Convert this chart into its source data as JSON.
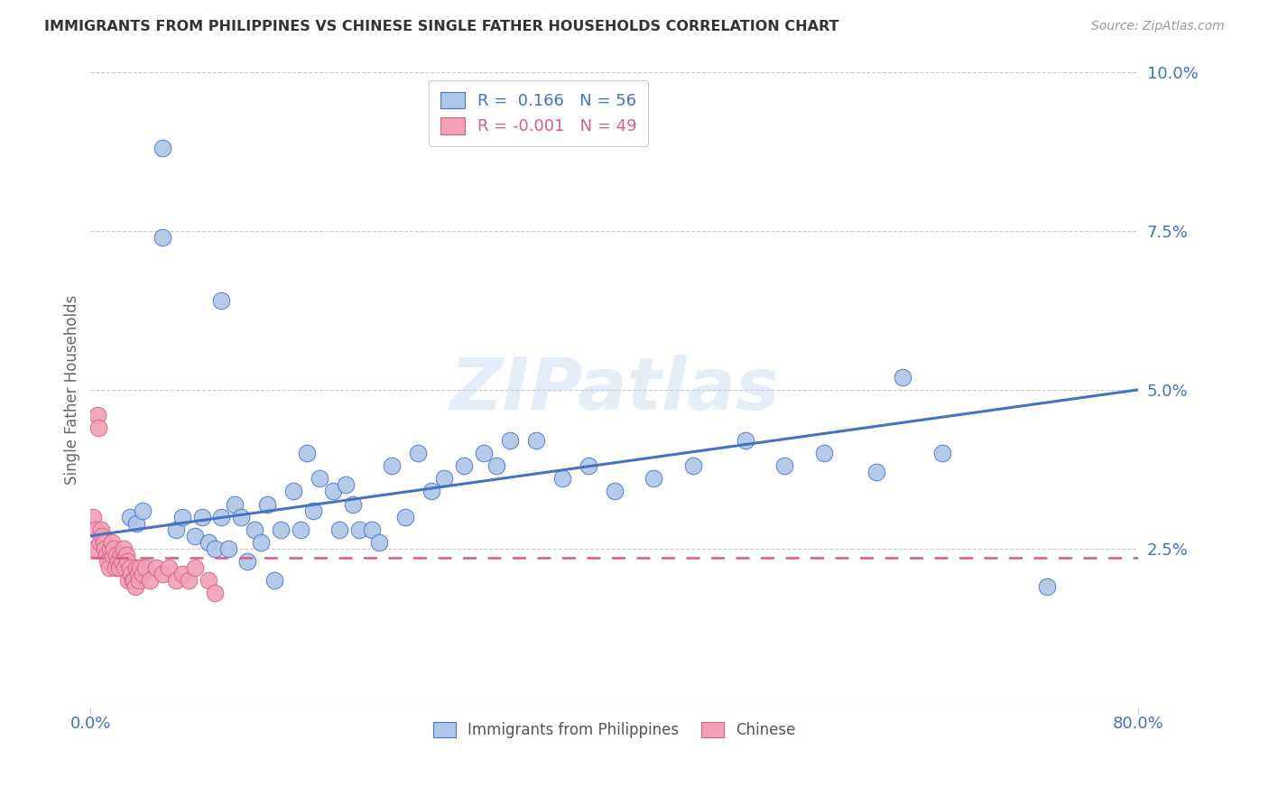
{
  "title": "IMMIGRANTS FROM PHILIPPINES VS CHINESE SINGLE FATHER HOUSEHOLDS CORRELATION CHART",
  "source": "Source: ZipAtlas.com",
  "ylabel": "Single Father Households",
  "watermark_text": "ZIPatlas",
  "series1_label": "Immigrants from Philippines",
  "series2_label": "Chinese",
  "series1_R": "0.166",
  "series1_N": "56",
  "series2_R": "-0.001",
  "series2_N": "49",
  "series1_color": "#aec6e8",
  "series2_color": "#f2a0b5",
  "trend1_color": "#4472c4",
  "trend2_color": "#d45f82",
  "xlim": [
    0.0,
    0.8
  ],
  "ylim": [
    0.0,
    0.1
  ],
  "yticks": [
    0.0,
    0.025,
    0.05,
    0.075,
    0.1
  ],
  "ytick_labels": [
    "",
    "2.5%",
    "5.0%",
    "7.5%",
    "10.0%"
  ],
  "xticks": [
    0.0,
    0.2,
    0.4,
    0.6,
    0.8
  ],
  "xtick_labels": [
    "0.0%",
    "",
    "",
    "",
    "80.0%"
  ],
  "series1_x": [
    0.03,
    0.035,
    0.04,
    0.055,
    0.065,
    0.07,
    0.08,
    0.085,
    0.09,
    0.095,
    0.1,
    0.105,
    0.11,
    0.115,
    0.12,
    0.125,
    0.13,
    0.135,
    0.14,
    0.145,
    0.155,
    0.16,
    0.165,
    0.17,
    0.175,
    0.185,
    0.19,
    0.195,
    0.2,
    0.205,
    0.215,
    0.22,
    0.23,
    0.24,
    0.25,
    0.26,
    0.27,
    0.285,
    0.3,
    0.31,
    0.32,
    0.34,
    0.36,
    0.38,
    0.4,
    0.43,
    0.46,
    0.5,
    0.53,
    0.56,
    0.6,
    0.62,
    0.65,
    0.73,
    0.055,
    0.1
  ],
  "series1_y": [
    0.03,
    0.029,
    0.031,
    0.088,
    0.028,
    0.03,
    0.027,
    0.03,
    0.026,
    0.025,
    0.03,
    0.025,
    0.032,
    0.03,
    0.023,
    0.028,
    0.026,
    0.032,
    0.02,
    0.028,
    0.034,
    0.028,
    0.04,
    0.031,
    0.036,
    0.034,
    0.028,
    0.035,
    0.032,
    0.028,
    0.028,
    0.026,
    0.038,
    0.03,
    0.04,
    0.034,
    0.036,
    0.038,
    0.04,
    0.038,
    0.042,
    0.042,
    0.036,
    0.038,
    0.034,
    0.036,
    0.038,
    0.042,
    0.038,
    0.04,
    0.037,
    0.052,
    0.04,
    0.019,
    0.074,
    0.064
  ],
  "series2_x": [
    0.002,
    0.003,
    0.004,
    0.005,
    0.006,
    0.007,
    0.008,
    0.009,
    0.01,
    0.011,
    0.012,
    0.013,
    0.014,
    0.015,
    0.016,
    0.017,
    0.018,
    0.019,
    0.02,
    0.021,
    0.022,
    0.023,
    0.024,
    0.025,
    0.026,
    0.027,
    0.028,
    0.029,
    0.03,
    0.031,
    0.032,
    0.033,
    0.034,
    0.035,
    0.036,
    0.037,
    0.038,
    0.04,
    0.042,
    0.045,
    0.05,
    0.055,
    0.06,
    0.065,
    0.07,
    0.075,
    0.08,
    0.09,
    0.095
  ],
  "series2_y": [
    0.03,
    0.025,
    0.028,
    0.046,
    0.044,
    0.026,
    0.028,
    0.027,
    0.026,
    0.025,
    0.024,
    0.023,
    0.022,
    0.025,
    0.026,
    0.024,
    0.025,
    0.022,
    0.024,
    0.023,
    0.022,
    0.024,
    0.023,
    0.025,
    0.022,
    0.024,
    0.023,
    0.02,
    0.022,
    0.021,
    0.02,
    0.02,
    0.019,
    0.022,
    0.021,
    0.02,
    0.022,
    0.021,
    0.022,
    0.02,
    0.022,
    0.021,
    0.022,
    0.02,
    0.021,
    0.02,
    0.022,
    0.02,
    0.018
  ],
  "trend1_x0": 0.0,
  "trend1_y0": 0.027,
  "trend1_x1": 0.8,
  "trend1_y1": 0.05,
  "trend2_x0": 0.0,
  "trend2_y0": 0.0235,
  "trend2_x1": 0.8,
  "trend2_y1": 0.0235
}
